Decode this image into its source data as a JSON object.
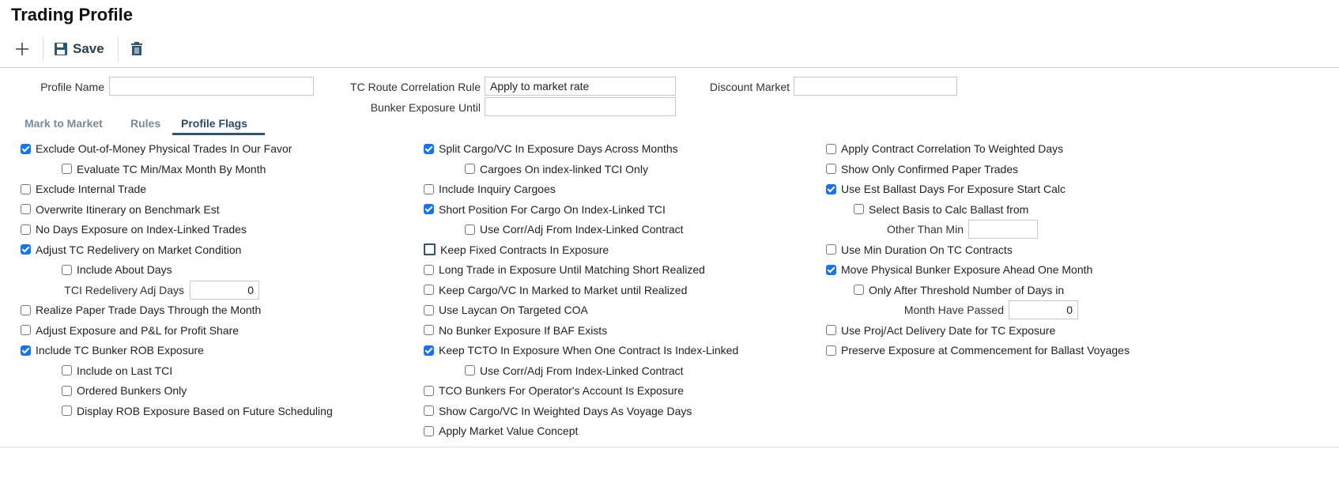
{
  "title": "Trading Profile",
  "toolbar": {
    "add_icon": "plus-icon",
    "save_label": "Save",
    "save_icon": "floppy-disk-icon",
    "delete_icon": "trash-icon"
  },
  "form": {
    "profile_name": {
      "label": "Profile Name",
      "value": ""
    },
    "tc_route": {
      "label": "TC Route Correlation Rule",
      "value": "Apply to market rate"
    },
    "bunker_until": {
      "label": "Bunker Exposure Until",
      "value": ""
    },
    "discount_market": {
      "label": "Discount Market",
      "value": ""
    }
  },
  "tabs": [
    {
      "label": "Mark to Market"
    },
    {
      "label": "Rules"
    },
    {
      "label": "Profile Flags",
      "active": true
    }
  ],
  "colors": {
    "checked": "#1a73e8",
    "tab_active": "#2d5670"
  },
  "columns": [
    {
      "items": [
        {
          "label": "Exclude Out-of-Money Physical Trades In Our Favor",
          "checked": true
        },
        {
          "label": "Evaluate TC Min/Max Month By Month",
          "checked": false
        },
        {
          "label": "Exclude Internal Trade",
          "checked": false
        },
        {
          "label": "Overwrite Itinerary on Benchmark Est",
          "checked": false
        },
        {
          "label": "No Days Exposure on Index-Linked Trades",
          "checked": false
        },
        {
          "label": "Adjust TC Redelivery on Market Condition",
          "checked": true
        },
        {
          "label": "Include About Days",
          "checked": false
        },
        {
          "label": "TCI Redelivery Adj Days",
          "value": "0"
        },
        {
          "label": "Realize Paper Trade Days Through the Month",
          "checked": false
        },
        {
          "label": "Adjust Exposure and P&L for Profit Share",
          "checked": false
        },
        {
          "label": "Include TC Bunker ROB Exposure",
          "checked": true
        },
        {
          "label": "Include on Last TCI",
          "checked": false
        },
        {
          "label": "Ordered Bunkers Only",
          "checked": false
        },
        {
          "label": "Display ROB Exposure Based on Future Scheduling",
          "checked": false
        }
      ]
    },
    {
      "items": [
        {
          "label": "Split Cargo/VC In Exposure Days Across Months",
          "checked": true
        },
        {
          "label": "Cargoes On index-linked TCI Only",
          "checked": false
        },
        {
          "label": "Include Inquiry Cargoes",
          "checked": false
        },
        {
          "label": "Short Position For Cargo On Index-Linked TCI",
          "checked": true
        },
        {
          "label": "Use Corr/Adj From Index-Linked Contract",
          "checked": false
        },
        {
          "label": "Keep Fixed Contracts In Exposure",
          "checked": false,
          "focused": true
        },
        {
          "label": "Long Trade in Exposure Until Matching Short Realized",
          "checked": false
        },
        {
          "label": "Keep Cargo/VC In Marked to Market until Realized",
          "checked": false
        },
        {
          "label": "Use Laycan On Targeted COA",
          "checked": false
        },
        {
          "label": "No Bunker Exposure If BAF Exists",
          "checked": false
        },
        {
          "label": "Keep TCTO In Exposure When One Contract Is Index-Linked",
          "checked": true
        },
        {
          "label": "Use Corr/Adj From Index-Linked Contract",
          "checked": false
        },
        {
          "label": "TCO Bunkers For Operator's Account Is Exposure",
          "checked": false
        },
        {
          "label": "Show Cargo/VC In Weighted Days As Voyage Days",
          "checked": false
        },
        {
          "label": "Apply Market Value Concept",
          "checked": false
        }
      ]
    },
    {
      "items": [
        {
          "label": "Apply Contract Correlation To Weighted Days",
          "checked": false
        },
        {
          "label": "Show Only Confirmed Paper Trades",
          "checked": false
        },
        {
          "label": "Use Est Ballast Days For Exposure Start Calc",
          "checked": true
        },
        {
          "label": "Select Basis to Calc Ballast from",
          "checked": false
        },
        {
          "label": "Other Than Min",
          "value": ""
        },
        {
          "label": "Use Min Duration On TC Contracts",
          "checked": false
        },
        {
          "label": "Move Physical Bunker Exposure Ahead One Month",
          "checked": true
        },
        {
          "label": "Only After Threshold Number of Days in",
          "checked": false
        },
        {
          "label": "Month Have Passed",
          "value": "0"
        },
        {
          "label": "Use Proj/Act Delivery Date for TC Exposure",
          "checked": false
        },
        {
          "label": "Preserve Exposure at Commencement for Ballast Voyages",
          "checked": false
        }
      ]
    }
  ]
}
